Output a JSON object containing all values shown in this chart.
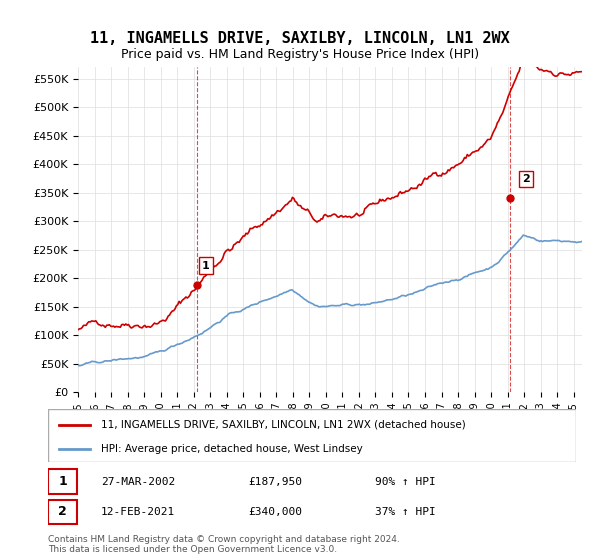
{
  "title": "11, INGAMELLS DRIVE, SAXILBY, LINCOLN, LN1 2WX",
  "subtitle": "Price paid vs. HM Land Registry's House Price Index (HPI)",
  "red_label": "11, INGAMELLS DRIVE, SAXILBY, LINCOLN, LN1 2WX (detached house)",
  "blue_label": "HPI: Average price, detached house, West Lindsey",
  "sale1_label": "1",
  "sale1_date": "27-MAR-2002",
  "sale1_price": "£187,950",
  "sale1_hpi": "90% ↑ HPI",
  "sale2_label": "2",
  "sale2_date": "12-FEB-2021",
  "sale2_price": "£340,000",
  "sale2_hpi": "37% ↑ HPI",
  "footnote": "Contains HM Land Registry data © Crown copyright and database right 2024.\nThis data is licensed under the Open Government Licence v3.0.",
  "red_color": "#cc0000",
  "blue_color": "#6699cc",
  "vline_color": "#cc0000",
  "sale1_x": 2002.23,
  "sale2_x": 2021.12,
  "sale1_y": 187950,
  "sale2_y": 340000,
  "ylim": [
    0,
    570000
  ],
  "xlim_start": 1995,
  "xlim_end": 2025.5
}
